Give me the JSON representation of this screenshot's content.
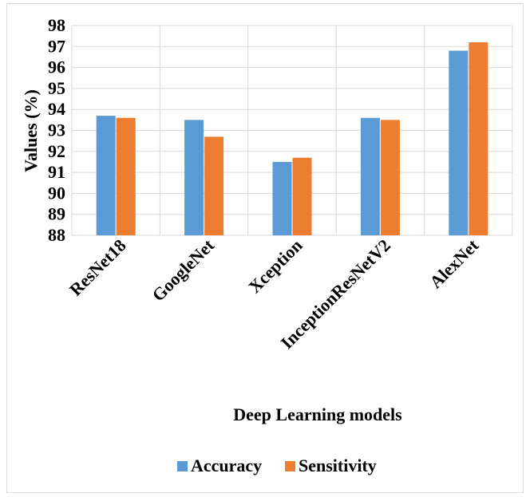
{
  "chart_data": {
    "type": "bar",
    "categories": [
      "ResNet18",
      "GoogleNet",
      "Xception",
      "InceptionResNetV2",
      "AlexNet"
    ],
    "series": [
      {
        "name": "Accuracy",
        "color": "#5b9bd5",
        "values": [
          93.7,
          93.5,
          91.5,
          93.6,
          96.8
        ]
      },
      {
        "name": "Sensitivity",
        "color": "#ed7d31",
        "values": [
          93.6,
          92.7,
          91.7,
          93.5,
          97.2
        ]
      }
    ],
    "xlabel": "Deep Learning models",
    "ylabel": "Values (%)",
    "ylim": [
      88,
      98
    ],
    "yticks": [
      88,
      89,
      90,
      91,
      92,
      93,
      94,
      95,
      96,
      97,
      98
    ],
    "grid": true,
    "legend": "bottom"
  }
}
